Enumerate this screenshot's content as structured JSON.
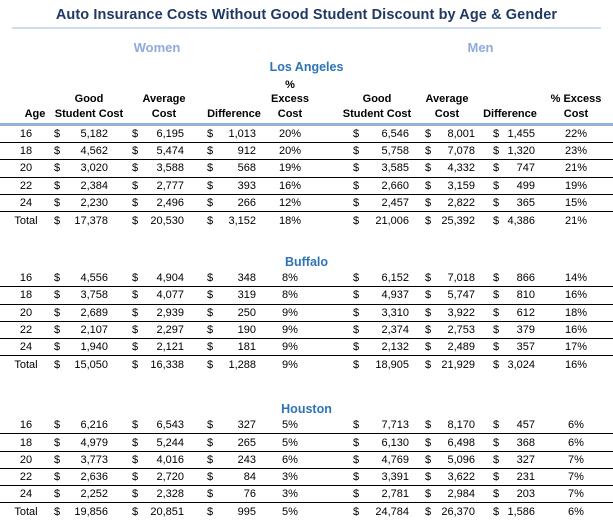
{
  "header": {
    "title": "Auto Insurance Costs Without Good Student Discount by Age & Gender",
    "women_label": "Women",
    "men_label": "Men"
  },
  "columns_header": {
    "age": "Age",
    "good_l1": "Good",
    "good_l2": "Student Cost",
    "avg_l1": "Average",
    "avg_l2": "Cost",
    "diff": "Difference",
    "excess_l1": "% Excess",
    "excess_l2": "Cost"
  },
  "currency_symbol": "$",
  "colors": {
    "title_text": "#1F3864",
    "gender_text": "#8FAADC",
    "city_text": "#2E74B5",
    "header_rule": "#95B3D7",
    "row_rule": "#000000",
    "title_underline": "#CDDCF0"
  },
  "chart_data": {
    "type": "table",
    "title": "Auto Insurance Costs Without Good Student Discount by Age & Gender",
    "gender_groups": [
      "Women",
      "Men"
    ],
    "columns": [
      "Age",
      "Good Student Cost",
      "Average Cost",
      "Difference",
      "% Excess Cost"
    ],
    "sections": [
      {
        "city": "Los Angeles",
        "rows": [
          {
            "age": "16",
            "women": [
              5182,
              6195,
              1013,
              20
            ],
            "men": [
              6546,
              8001,
              1455,
              22
            ]
          },
          {
            "age": "18",
            "women": [
              4562,
              5474,
              912,
              20
            ],
            "men": [
              5758,
              7078,
              1320,
              23
            ]
          },
          {
            "age": "20",
            "women": [
              3020,
              3588,
              568,
              19
            ],
            "men": [
              3585,
              4332,
              747,
              21
            ]
          },
          {
            "age": "22",
            "women": [
              2384,
              2777,
              393,
              16
            ],
            "men": [
              2660,
              3159,
              499,
              19
            ]
          },
          {
            "age": "24",
            "women": [
              2230,
              2496,
              266,
              12
            ],
            "men": [
              2457,
              2822,
              365,
              15
            ]
          },
          {
            "age": "Total",
            "women": [
              17378,
              20530,
              3152,
              18
            ],
            "men": [
              21006,
              25392,
              4386,
              21
            ]
          }
        ]
      },
      {
        "city": "Buffalo",
        "rows": [
          {
            "age": "16",
            "women": [
              4556,
              4904,
              348,
              8
            ],
            "men": [
              6152,
              7018,
              866,
              14
            ]
          },
          {
            "age": "18",
            "women": [
              3758,
              4077,
              319,
              8
            ],
            "men": [
              4937,
              5747,
              810,
              16
            ]
          },
          {
            "age": "20",
            "women": [
              2689,
              2939,
              250,
              9
            ],
            "men": [
              3310,
              3922,
              612,
              18
            ]
          },
          {
            "age": "22",
            "women": [
              2107,
              2297,
              190,
              9
            ],
            "men": [
              2374,
              2753,
              379,
              16
            ]
          },
          {
            "age": "24",
            "women": [
              1940,
              2121,
              181,
              9
            ],
            "men": [
              2132,
              2489,
              357,
              17
            ]
          },
          {
            "age": "Total",
            "women": [
              15050,
              16338,
              1288,
              9
            ],
            "men": [
              18905,
              21929,
              3024,
              16
            ]
          }
        ]
      },
      {
        "city": "Houston",
        "rows": [
          {
            "age": "16",
            "women": [
              6216,
              6543,
              327,
              5
            ],
            "men": [
              7713,
              8170,
              457,
              6
            ]
          },
          {
            "age": "18",
            "women": [
              4979,
              5244,
              265,
              5
            ],
            "men": [
              6130,
              6498,
              368,
              6
            ]
          },
          {
            "age": "20",
            "women": [
              3773,
              4016,
              243,
              6
            ],
            "men": [
              4769,
              5096,
              327,
              7
            ]
          },
          {
            "age": "22",
            "women": [
              2636,
              2720,
              84,
              3
            ],
            "men": [
              3391,
              3622,
              231,
              7
            ]
          },
          {
            "age": "24",
            "women": [
              2252,
              2328,
              76,
              3
            ],
            "men": [
              2781,
              2984,
              203,
              7
            ]
          },
          {
            "age": "Total",
            "women": [
              19856,
              20851,
              995,
              5
            ],
            "men": [
              24784,
              26370,
              1586,
              6
            ]
          }
        ]
      }
    ]
  }
}
